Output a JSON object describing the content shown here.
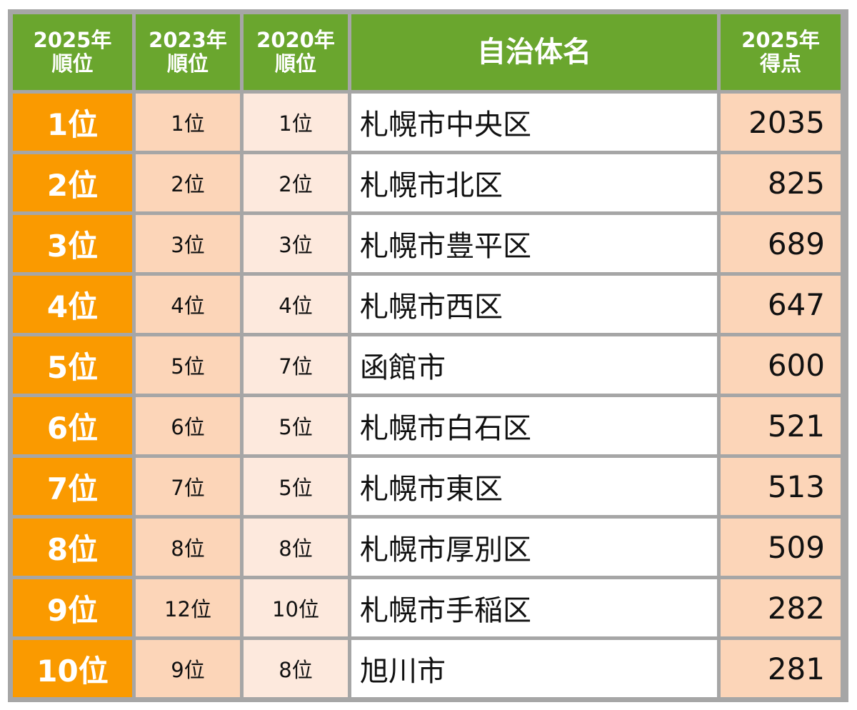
{
  "headers": {
    "rank2025": [
      "2025年",
      "順位"
    ],
    "rank2023": [
      "2023年",
      "順位"
    ],
    "rank2020": [
      "2020年",
      "順位"
    ],
    "name": "自治体名",
    "score2025": [
      "2025年",
      "得点"
    ]
  },
  "rows": [
    {
      "rank2025": "1位",
      "rank2023": "1位",
      "rank2020": "1位",
      "name": "札幌市中央区",
      "score": "2035"
    },
    {
      "rank2025": "2位",
      "rank2023": "2位",
      "rank2020": "2位",
      "name": "札幌市北区",
      "score": "825"
    },
    {
      "rank2025": "3位",
      "rank2023": "3位",
      "rank2020": "3位",
      "name": "札幌市豊平区",
      "score": "689"
    },
    {
      "rank2025": "4位",
      "rank2023": "4位",
      "rank2020": "4位",
      "name": "札幌市西区",
      "score": "647"
    },
    {
      "rank2025": "5位",
      "rank2023": "5位",
      "rank2020": "7位",
      "name": "函館市",
      "score": "600"
    },
    {
      "rank2025": "6位",
      "rank2023": "6位",
      "rank2020": "5位",
      "name": "札幌市白石区",
      "score": "521"
    },
    {
      "rank2025": "7位",
      "rank2023": "7位",
      "rank2020": "5位",
      "name": "札幌市東区",
      "score": "513"
    },
    {
      "rank2025": "8位",
      "rank2023": "8位",
      "rank2020": "8位",
      "name": "札幌市厚別区",
      "score": "509"
    },
    {
      "rank2025": "9位",
      "rank2023": "12位",
      "rank2020": "10位",
      "name": "札幌市手稲区",
      "score": "282"
    },
    {
      "rank2025": "10位",
      "rank2023": "9位",
      "rank2020": "8位",
      "name": "旭川市",
      "score": "281"
    }
  ],
  "colors": {
    "header": "#6aa62e",
    "rank2025": "#fa9a00",
    "peach": "#fcd5b8",
    "light_peach": "#fde9dd",
    "border": "#a6a6a6"
  }
}
